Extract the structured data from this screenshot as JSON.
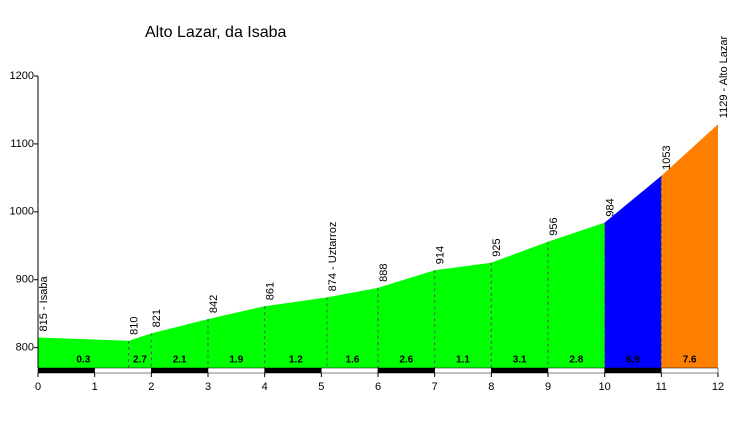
{
  "chart_data": {
    "type": "area",
    "title": "Alto Lazar, da Isaba",
    "x": [
      0,
      1.6,
      2,
      3,
      4,
      5.1,
      6,
      7,
      8,
      9,
      10,
      11,
      12
    ],
    "values": [
      815,
      810,
      821,
      842,
      861,
      874,
      888,
      914,
      925,
      956,
      984,
      1053,
      1129
    ],
    "value_labels": [
      "815 - Isaba",
      "810",
      "821",
      "842",
      "861",
      "874 - Uztarroz",
      "888",
      "914",
      "925",
      "956",
      "984",
      "1053",
      "1129 - Alto Lazar"
    ],
    "segments": {
      "values": [
        0.3,
        2.7,
        2.1,
        1.9,
        1.2,
        1.6,
        2.6,
        1.1,
        3.1,
        2.8,
        6.9,
        7.6
      ],
      "colors": [
        "#00ff00",
        "#00ff00",
        "#00ff00",
        "#00ff00",
        "#00ff00",
        "#00ff00",
        "#00ff00",
        "#00ff00",
        "#00ff00",
        "#00ff00",
        "#0000ff",
        "#ff8000"
      ]
    },
    "xlim": [
      0,
      12
    ],
    "xticks": [
      0,
      1,
      2,
      3,
      4,
      5,
      6,
      7,
      8,
      9,
      10,
      11,
      12
    ],
    "ylim": [
      770,
      1200
    ],
    "yticks": [
      800,
      900,
      1000,
      1100,
      1200
    ]
  }
}
